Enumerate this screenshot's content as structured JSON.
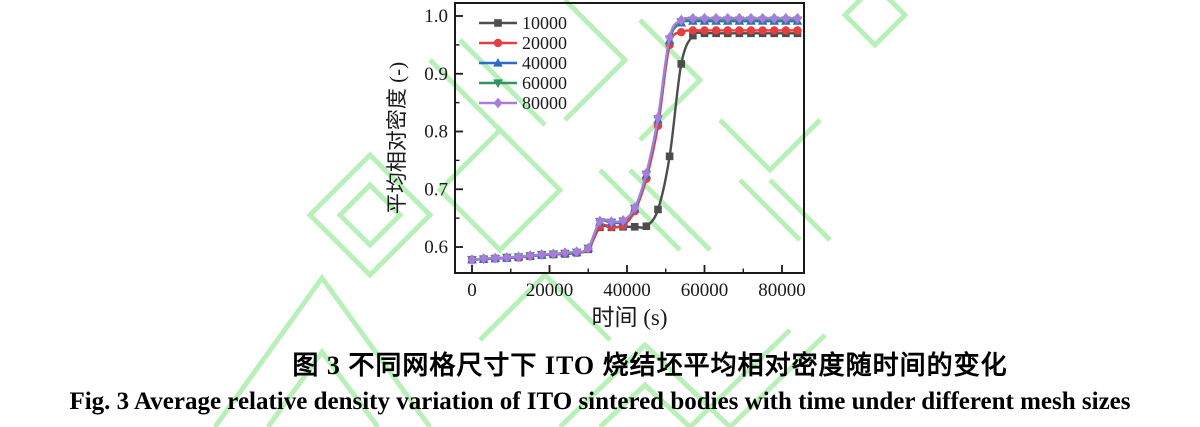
{
  "figure": {
    "caption_zh": "图 3  不同网格尺寸下 ITO 烧结坯平均相对密度随时间的变化",
    "caption_en": "Fig. 3 Average relative density variation of ITO sintered bodies with time under different mesh sizes"
  },
  "colors": {
    "watermark_green": "#b9f0b9",
    "axis_black": "#1a1a1a"
  },
  "chart_data": {
    "type": "line",
    "title": "",
    "xlabel": "时间 (s)",
    "ylabel": "平均相对密度 (-)",
    "xlim": [
      -4387,
      85677
    ],
    "ylim": [
      0.555,
      1.0225
    ],
    "xticks": [
      0,
      20000,
      40000,
      60000,
      80000
    ],
    "xtick_labels": [
      "0",
      "20000",
      "40000",
      "60000",
      "80000"
    ],
    "xminor": [
      10000,
      30000,
      50000,
      70000
    ],
    "yticks": [
      0.6,
      0.7,
      0.8,
      0.9,
      1.0
    ],
    "ytick_labels": [
      "0.6",
      "0.7",
      "0.8",
      "0.9",
      "1.0"
    ],
    "yminor": [
      0.65,
      0.75,
      0.85,
      0.95
    ],
    "grid": false,
    "legend_position": "top-left-inside",
    "x": [
      0,
      3000,
      6000,
      9000,
      12000,
      15000,
      18000,
      21000,
      24000,
      27000,
      30000,
      33000,
      36000,
      39000,
      42000,
      45000,
      48000,
      51000,
      54000,
      57000,
      60000,
      63000,
      66000,
      69000,
      72000,
      75000,
      78000,
      81000,
      84000
    ],
    "series": [
      {
        "name": "10000",
        "color": "#4d4d4d",
        "marker": "square",
        "values": [
          0.578,
          0.579,
          0.58,
          0.581,
          0.582,
          0.584,
          0.586,
          0.587,
          0.588,
          0.59,
          0.596,
          0.634,
          0.634,
          0.635,
          0.635,
          0.636,
          0.665,
          0.757,
          0.917,
          0.966,
          0.97,
          0.97,
          0.97,
          0.97,
          0.97,
          0.97,
          0.97,
          0.97,
          0.97
        ]
      },
      {
        "name": "20000",
        "color": "#e63e3e",
        "marker": "circle",
        "values": [
          0.578,
          0.579,
          0.58,
          0.581,
          0.582,
          0.584,
          0.586,
          0.587,
          0.588,
          0.59,
          0.597,
          0.636,
          0.635,
          0.637,
          0.662,
          0.718,
          0.81,
          0.95,
          0.972,
          0.975,
          0.975,
          0.975,
          0.975,
          0.975,
          0.975,
          0.975,
          0.975,
          0.975,
          0.975
        ]
      },
      {
        "name": "40000",
        "color": "#2b6bc9",
        "marker": "triangle-up",
        "values": [
          0.578,
          0.579,
          0.58,
          0.581,
          0.583,
          0.585,
          0.586,
          0.588,
          0.589,
          0.591,
          0.598,
          0.643,
          0.642,
          0.644,
          0.666,
          0.725,
          0.82,
          0.958,
          0.988,
          0.991,
          0.991,
          0.991,
          0.991,
          0.991,
          0.991,
          0.991,
          0.991,
          0.991,
          0.991
        ]
      },
      {
        "name": "60000",
        "color": "#2f9461",
        "marker": "triangle-down",
        "values": [
          0.578,
          0.579,
          0.58,
          0.582,
          0.583,
          0.585,
          0.587,
          0.588,
          0.589,
          0.591,
          0.598,
          0.644,
          0.643,
          0.645,
          0.667,
          0.726,
          0.822,
          0.96,
          0.99,
          0.993,
          0.993,
          0.993,
          0.993,
          0.993,
          0.993,
          0.993,
          0.993,
          0.993,
          0.993
        ]
      },
      {
        "name": "80000",
        "color": "#a97bdc",
        "marker": "diamond",
        "values": [
          0.578,
          0.58,
          0.581,
          0.582,
          0.583,
          0.585,
          0.587,
          0.588,
          0.59,
          0.592,
          0.598,
          0.645,
          0.644,
          0.646,
          0.668,
          0.728,
          0.824,
          0.963,
          0.993,
          0.996,
          0.996,
          0.996,
          0.996,
          0.996,
          0.996,
          0.996,
          0.996,
          0.996,
          0.996
        ]
      }
    ]
  }
}
